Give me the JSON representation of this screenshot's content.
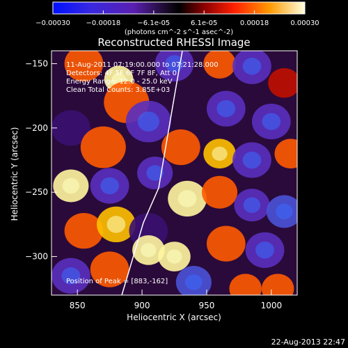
{
  "chart_data": {
    "type": "heatmap",
    "title": "Reconstructed RHESSI Image",
    "xlabel": "Heliocentric X (arcsec)",
    "ylabel": "Heliocentric Y (arcsec)",
    "xlim": [
      830,
      1020
    ],
    "ylim": [
      -330,
      -140
    ],
    "x_ticks": [
      850,
      900,
      950,
      1000
    ],
    "y_ticks": [
      -150,
      -200,
      -250,
      -300
    ],
    "colorbar": {
      "range": [
        -0.0003,
        0.0003
      ],
      "ticks": [
        "-0.00030",
        "-0.00018",
        "-6.1e-05",
        "6.1e-05",
        "0.00018",
        "0.00030"
      ],
      "units_label": "(photons cm^-2 s^-1 asec^-2)",
      "colormap": [
        "#0000ff",
        "#5a1fb0",
        "#1a0a2a",
        "#000000",
        "#8a0000",
        "#ff2000",
        "#ff9a00",
        "#ffffd0"
      ]
    },
    "annotations": {
      "time_range": "11-Aug-2011 07:19:00.000 to 07:21:28.000",
      "detectors": "Detectors: 4F 5F 6F 7F 8F, Att 0",
      "energy_range": "Energy Range: 12.0 - 25.0 keV",
      "clean": "Clean    Total Counts: 3.85E+03",
      "peak": "Position of Peak = [883,-162]"
    },
    "blobs": [
      {
        "x": 882,
        "y": -162,
        "v": 1.0,
        "s": 9
      },
      {
        "x": 888,
        "y": -180,
        "v": 0.5,
        "s": 14
      },
      {
        "x": 855,
        "y": -150,
        "v": 0.6,
        "s": 12
      },
      {
        "x": 925,
        "y": -150,
        "v": -0.8,
        "s": 12
      },
      {
        "x": 960,
        "y": -150,
        "v": 0.5,
        "s": 10
      },
      {
        "x": 985,
        "y": -152,
        "v": -0.8,
        "s": 12
      },
      {
        "x": 1010,
        "y": -165,
        "v": 0.4,
        "s": 10
      },
      {
        "x": 905,
        "y": -195,
        "v": -0.75,
        "s": 14
      },
      {
        "x": 965,
        "y": -185,
        "v": -0.7,
        "s": 12
      },
      {
        "x": 1000,
        "y": -195,
        "v": -0.8,
        "s": 12
      },
      {
        "x": 845,
        "y": -200,
        "v": -0.6,
        "s": 12
      },
      {
        "x": 870,
        "y": -215,
        "v": 0.55,
        "s": 14
      },
      {
        "x": 930,
        "y": -215,
        "v": 0.6,
        "s": 12
      },
      {
        "x": 960,
        "y": -220,
        "v": 0.7,
        "s": 10
      },
      {
        "x": 985,
        "y": -225,
        "v": -0.7,
        "s": 12
      },
      {
        "x": 1015,
        "y": -220,
        "v": 0.6,
        "s": 10
      },
      {
        "x": 845,
        "y": -245,
        "v": 0.9,
        "s": 11
      },
      {
        "x": 875,
        "y": -245,
        "v": -0.7,
        "s": 12
      },
      {
        "x": 910,
        "y": -235,
        "v": -0.8,
        "s": 11
      },
      {
        "x": 935,
        "y": -255,
        "v": 0.95,
        "s": 12
      },
      {
        "x": 960,
        "y": -250,
        "v": 0.6,
        "s": 11
      },
      {
        "x": 985,
        "y": -260,
        "v": -0.7,
        "s": 11
      },
      {
        "x": 1010,
        "y": -265,
        "v": -0.9,
        "s": 11
      },
      {
        "x": 855,
        "y": -280,
        "v": 0.6,
        "s": 12
      },
      {
        "x": 880,
        "y": -275,
        "v": 0.7,
        "s": 12
      },
      {
        "x": 905,
        "y": -280,
        "v": -0.6,
        "s": 12
      },
      {
        "x": 965,
        "y": -290,
        "v": 0.6,
        "s": 12
      },
      {
        "x": 995,
        "y": -295,
        "v": -0.7,
        "s": 12
      },
      {
        "x": 845,
        "y": -315,
        "v": -0.8,
        "s": 12
      },
      {
        "x": 875,
        "y": -310,
        "v": 0.6,
        "s": 12
      },
      {
        "x": 905,
        "y": -295,
        "v": 0.9,
        "s": 10
      },
      {
        "x": 925,
        "y": -300,
        "v": 0.95,
        "s": 10
      },
      {
        "x": 940,
        "y": -320,
        "v": -0.9,
        "s": 11
      },
      {
        "x": 980,
        "y": -325,
        "v": 0.5,
        "s": 10
      },
      {
        "x": 1005,
        "y": -325,
        "v": 0.55,
        "s": 10
      }
    ]
  },
  "footer": {
    "date": "22-Aug-2013 22:47"
  }
}
